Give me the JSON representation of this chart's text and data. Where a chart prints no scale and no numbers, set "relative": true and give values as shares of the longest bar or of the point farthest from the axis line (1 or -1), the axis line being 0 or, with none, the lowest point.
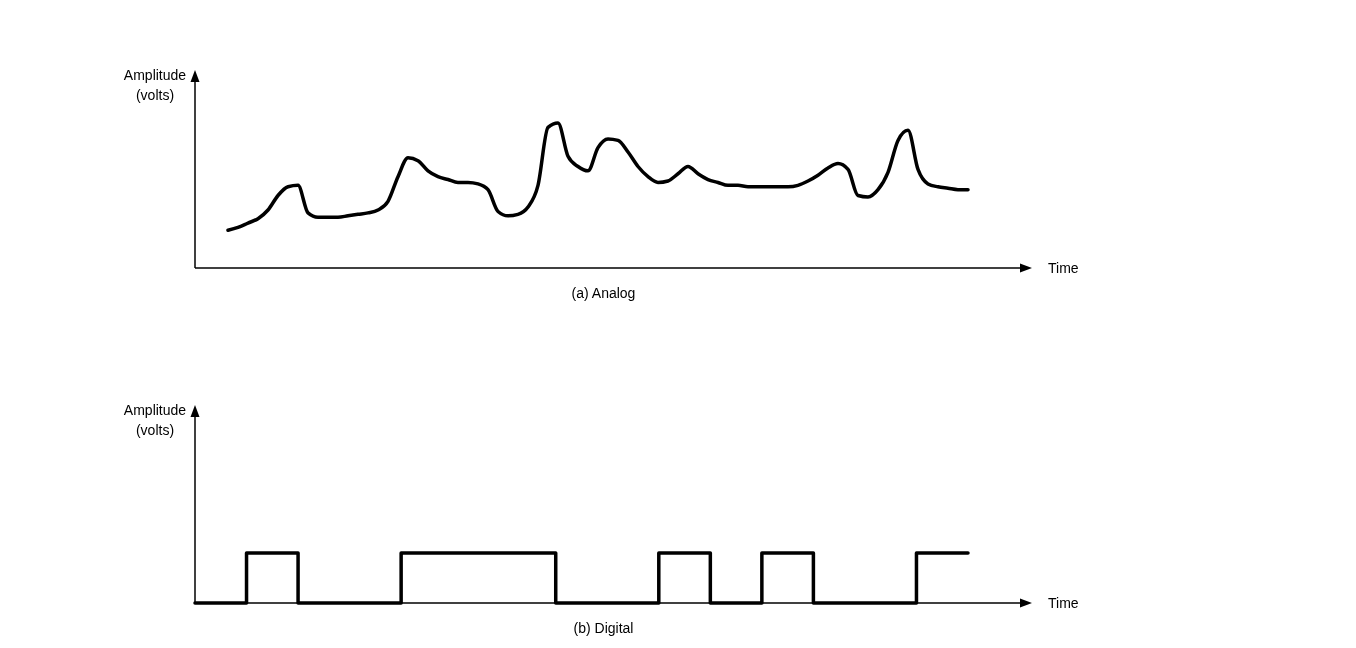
{
  "chart_data": [
    {
      "type": "line",
      "title": "(a) Analog",
      "xlabel": "Time",
      "ylabel": "Amplitude (volts)",
      "relative": true,
      "color": "#000000",
      "categories": [
        null,
        null,
        null,
        null,
        null,
        null,
        null,
        null,
        null,
        null,
        null,
        null,
        null,
        null,
        null,
        null,
        null,
        null,
        null,
        null,
        null,
        null,
        null,
        null,
        null,
        null,
        null,
        null,
        null,
        null,
        null,
        null,
        null,
        null,
        null,
        null,
        null,
        null,
        null,
        null,
        null,
        null,
        null,
        null,
        null,
        null,
        null,
        null,
        null,
        null,
        null,
        null,
        null,
        null,
        null,
        null,
        null,
        null,
        null,
        null,
        null,
        null,
        null,
        null,
        null,
        null,
        null,
        null,
        null,
        null,
        null,
        null,
        null,
        null,
        null
      ],
      "values": [
        0.26,
        0.28,
        0.31,
        0.34,
        0.4,
        0.5,
        0.56,
        0.57,
        0.38,
        0.35,
        0.35,
        0.35,
        0.36,
        0.37,
        0.38,
        0.4,
        0.46,
        0.63,
        0.76,
        0.74,
        0.67,
        0.63,
        0.61,
        0.59,
        0.59,
        0.58,
        0.54,
        0.39,
        0.36,
        0.37,
        0.42,
        0.57,
        0.97,
        1,
        0.77,
        0.7,
        0.67,
        0.83,
        0.89,
        0.88,
        0.8,
        0.7,
        0.63,
        0.59,
        0.6,
        0.65,
        0.7,
        0.65,
        0.61,
        0.59,
        0.57,
        0.57,
        0.56,
        0.56,
        0.56,
        0.56,
        0.56,
        0.57,
        0.6,
        0.64,
        0.69,
        0.72,
        0.68,
        0.5,
        0.49,
        0.54,
        0.66,
        0.88,
        0.95,
        0.68,
        0.58,
        0.56,
        0.55,
        0.54,
        0.54
      ]
    },
    {
      "type": "step",
      "title": "(b) Digital",
      "xlabel": "Time",
      "ylabel": "Amplitude (volts)",
      "relative": true,
      "color": "#000000",
      "categories": [
        null,
        null,
        null,
        null,
        null,
        null,
        null,
        null,
        null,
        null,
        null,
        null,
        null,
        null,
        null,
        null
      ],
      "values": [
        0,
        1,
        0,
        0,
        1,
        1,
        1,
        0,
        0,
        1,
        0,
        1,
        0,
        0,
        1,
        1
      ]
    }
  ]
}
